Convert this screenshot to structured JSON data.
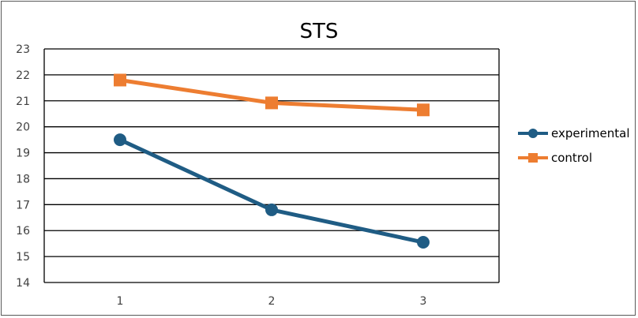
{
  "chart_data": {
    "type": "line",
    "title": "STS",
    "xlabel": "",
    "ylabel": "",
    "categories": [
      "1",
      "2",
      "3"
    ],
    "ylim": [
      14,
      23
    ],
    "yticks": [
      14,
      15,
      16,
      17,
      18,
      19,
      20,
      21,
      22,
      23
    ],
    "grid": true,
    "legend_position": "right",
    "series": [
      {
        "name": "experimental",
        "values": [
          19.5,
          16.8,
          15.55
        ],
        "color": "#1F5C84",
        "marker": "circle"
      },
      {
        "name": "control",
        "values": [
          21.8,
          20.92,
          20.65
        ],
        "color": "#ED7D31",
        "marker": "square"
      }
    ]
  }
}
